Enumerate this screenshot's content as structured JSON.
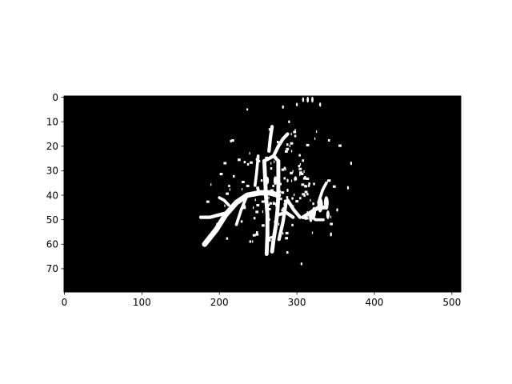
{
  "chart_data": {
    "type": "heatmap",
    "description_colormap": "binary",
    "colors": {
      "background": "#000000",
      "foreground": "#ffffff",
      "frame": "#000000"
    },
    "xlim": [
      0,
      511
    ],
    "ylim": [
      79,
      0
    ],
    "x_ticks": [
      0,
      100,
      200,
      300,
      400,
      500
    ],
    "y_ticks": [
      0,
      10,
      20,
      30,
      40,
      50,
      60,
      70
    ],
    "grid": false,
    "strokes": [
      {
        "width": 2.2,
        "points": [
          [
            181,
            60
          ],
          [
            196,
            54
          ],
          [
            208,
            48
          ],
          [
            222,
            43
          ],
          [
            236,
            40
          ],
          [
            252,
            39
          ],
          [
            265,
            39
          ],
          [
            276,
            40
          ]
        ]
      },
      {
        "width": 1.4,
        "points": [
          [
            176,
            49
          ],
          [
            188,
            49
          ],
          [
            200,
            48
          ],
          [
            212,
            47
          ]
        ]
      },
      {
        "width": 1.6,
        "points": [
          [
            258,
            26
          ],
          [
            259,
            33
          ],
          [
            260,
            40
          ],
          [
            262,
            48
          ],
          [
            262,
            56
          ],
          [
            261,
            64
          ]
        ]
      },
      {
        "width": 1.6,
        "points": [
          [
            276,
            26
          ],
          [
            276,
            33
          ],
          [
            276,
            40
          ],
          [
            275,
            46
          ],
          [
            273,
            52
          ],
          [
            270,
            58
          ],
          [
            268,
            63
          ]
        ]
      },
      {
        "width": 1.4,
        "points": [
          [
            258,
            26
          ],
          [
            264,
            25
          ],
          [
            270,
            24
          ],
          [
            276,
            26
          ]
        ]
      },
      {
        "width": 1.4,
        "points": [
          [
            264,
            22
          ],
          [
            266,
            16
          ],
          [
            268,
            12
          ]
        ]
      },
      {
        "width": 1.4,
        "points": [
          [
            270,
            24
          ],
          [
            276,
            20
          ],
          [
            282,
            17
          ],
          [
            288,
            15
          ]
        ]
      },
      {
        "width": 1.2,
        "points": [
          [
            250,
            24
          ],
          [
            248,
            31
          ],
          [
            246,
            36
          ]
        ]
      },
      {
        "width": 1.4,
        "points": [
          [
            286,
            43
          ],
          [
            282,
            51
          ],
          [
            277,
            58
          ]
        ]
      },
      {
        "width": 1.4,
        "points": [
          [
            276,
            48
          ],
          [
            286,
            47
          ],
          [
            295,
            49
          ]
        ]
      },
      {
        "width": 1.4,
        "points": [
          [
            288,
            42
          ],
          [
            296,
            46
          ],
          [
            304,
            49
          ]
        ]
      },
      {
        "width": 1.2,
        "points": [
          [
            236,
            40
          ],
          [
            228,
            46
          ],
          [
            222,
            52
          ]
        ]
      },
      {
        "width": 1.2,
        "points": [
          [
            212,
            44
          ],
          [
            206,
            42
          ],
          [
            200,
            41
          ]
        ]
      },
      {
        "width": 1.6,
        "points": [
          [
            308,
            49
          ],
          [
            318,
            47
          ],
          [
            328,
            45
          ],
          [
            338,
            45
          ]
        ]
      },
      {
        "width": 1.2,
        "points": [
          [
            316,
            48
          ],
          [
            324,
            50
          ],
          [
            334,
            50
          ]
        ]
      },
      {
        "width": 1.2,
        "points": [
          [
            328,
            43
          ],
          [
            333,
            38
          ],
          [
            338,
            35
          ]
        ]
      }
    ],
    "blobs": [
      {
        "x": 314,
        "y": 1,
        "r": 1.2
      },
      {
        "x": 320,
        "y": 1,
        "r": 1.2
      },
      {
        "x": 308,
        "y": 1,
        "r": 1.0
      },
      {
        "x": 330,
        "y": 3,
        "r": 0.9
      },
      {
        "x": 300,
        "y": 3,
        "r": 0.7
      },
      {
        "x": 330,
        "y": 44,
        "r": 3.0
      },
      {
        "x": 338,
        "y": 43,
        "r": 2.6
      },
      {
        "x": 322,
        "y": 47,
        "r": 2.2
      },
      {
        "x": 318,
        "y": 49,
        "r": 2.0
      },
      {
        "x": 340,
        "y": 48,
        "r": 1.8
      },
      {
        "x": 272,
        "y": 34,
        "r": 1.8
      },
      {
        "x": 262,
        "y": 34,
        "r": 1.6
      },
      {
        "x": 250,
        "y": 38,
        "r": 1.6
      },
      {
        "x": 288,
        "y": 34,
        "r": 0.7
      },
      {
        "x": 288,
        "y": 38,
        "r": 0.7
      },
      {
        "x": 370,
        "y": 27,
        "r": 0.7
      },
      {
        "x": 366,
        "y": 37,
        "r": 0.7
      },
      {
        "x": 306,
        "y": 68,
        "r": 0.6
      },
      {
        "x": 344,
        "y": 56,
        "r": 0.8
      },
      {
        "x": 352,
        "y": 46,
        "r": 0.7
      },
      {
        "x": 236,
        "y": 5,
        "r": 0.5
      },
      {
        "x": 282,
        "y": 4,
        "r": 0.7
      },
      {
        "x": 290,
        "y": 10,
        "r": 0.6
      }
    ],
    "scatter_region": {
      "x": [
        172,
        378
      ],
      "y": [
        5,
        69
      ],
      "count": 160
    }
  }
}
